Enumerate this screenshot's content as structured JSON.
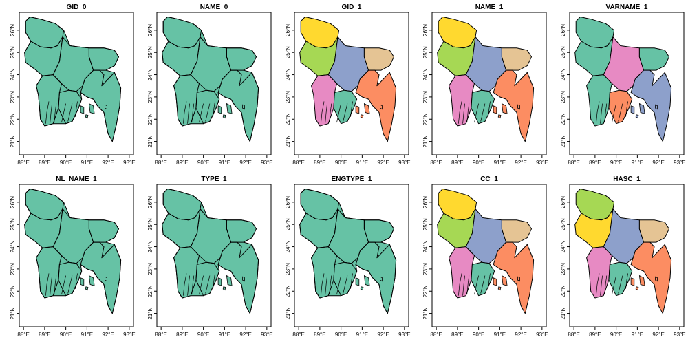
{
  "chart_data": {
    "type": "map",
    "x_ticks": [
      "88°E",
      "89°E",
      "90°E",
      "91°E",
      "92°E",
      "93°E"
    ],
    "y_ticks": [
      "21°N",
      "22°N",
      "23°N",
      "24°N",
      "25°N",
      "26°N"
    ],
    "xlim": [
      87.8,
      93.2
    ],
    "ylim": [
      20.4,
      26.8
    ],
    "colors": {
      "single": "#66c2a5",
      "palette": [
        "#fc8d62",
        "#8da0cb",
        "#e78ac3",
        "#a6d854",
        "#ffd92f",
        "#e5c494",
        "#66c2a5"
      ]
    },
    "panels": [
      {
        "title": "GID_0",
        "mode": "single"
      },
      {
        "title": "NAME_0",
        "mode": "single"
      },
      {
        "title": "GID_1",
        "mode": "divisions",
        "fills": {
          "rangpur": "#ffd92f",
          "rajshahi": "#a6d854",
          "dhaka": "#8da0cb",
          "sylhet": "#e5c494",
          "khulna": "#e78ac3",
          "barisal": "#66c2a5",
          "chittagong": "#fc8d62"
        }
      },
      {
        "title": "NAME_1",
        "mode": "divisions",
        "fills": {
          "rangpur": "#ffd92f",
          "rajshahi": "#a6d854",
          "dhaka": "#8da0cb",
          "sylhet": "#e5c494",
          "khulna": "#e78ac3",
          "barisal": "#66c2a5",
          "chittagong": "#fc8d62"
        }
      },
      {
        "title": "VARNAME_1",
        "mode": "divisions",
        "fills": {
          "rangpur": "#66c2a5",
          "rajshahi": "#66c2a5",
          "dhaka": "#e78ac3",
          "sylhet": "#66c2a5",
          "khulna": "#66c2a5",
          "barisal": "#fc8d62",
          "chittagong": "#8da0cb"
        }
      },
      {
        "title": "NL_NAME_1",
        "mode": "single"
      },
      {
        "title": "TYPE_1",
        "mode": "single"
      },
      {
        "title": "ENGTYPE_1",
        "mode": "single"
      },
      {
        "title": "CC_1",
        "mode": "divisions",
        "fills": {
          "rangpur": "#ffd92f",
          "rajshahi": "#a6d854",
          "dhaka": "#8da0cb",
          "sylhet": "#e5c494",
          "khulna": "#e78ac3",
          "barisal": "#66c2a5",
          "chittagong": "#fc8d62"
        }
      },
      {
        "title": "HASC_1",
        "mode": "divisions",
        "fills": {
          "rangpur": "#a6d854",
          "rajshahi": "#ffd92f",
          "dhaka": "#8da0cb",
          "sylhet": "#e5c494",
          "khulna": "#e78ac3",
          "barisal": "#66c2a5",
          "chittagong": "#fc8d62"
        }
      }
    ]
  }
}
